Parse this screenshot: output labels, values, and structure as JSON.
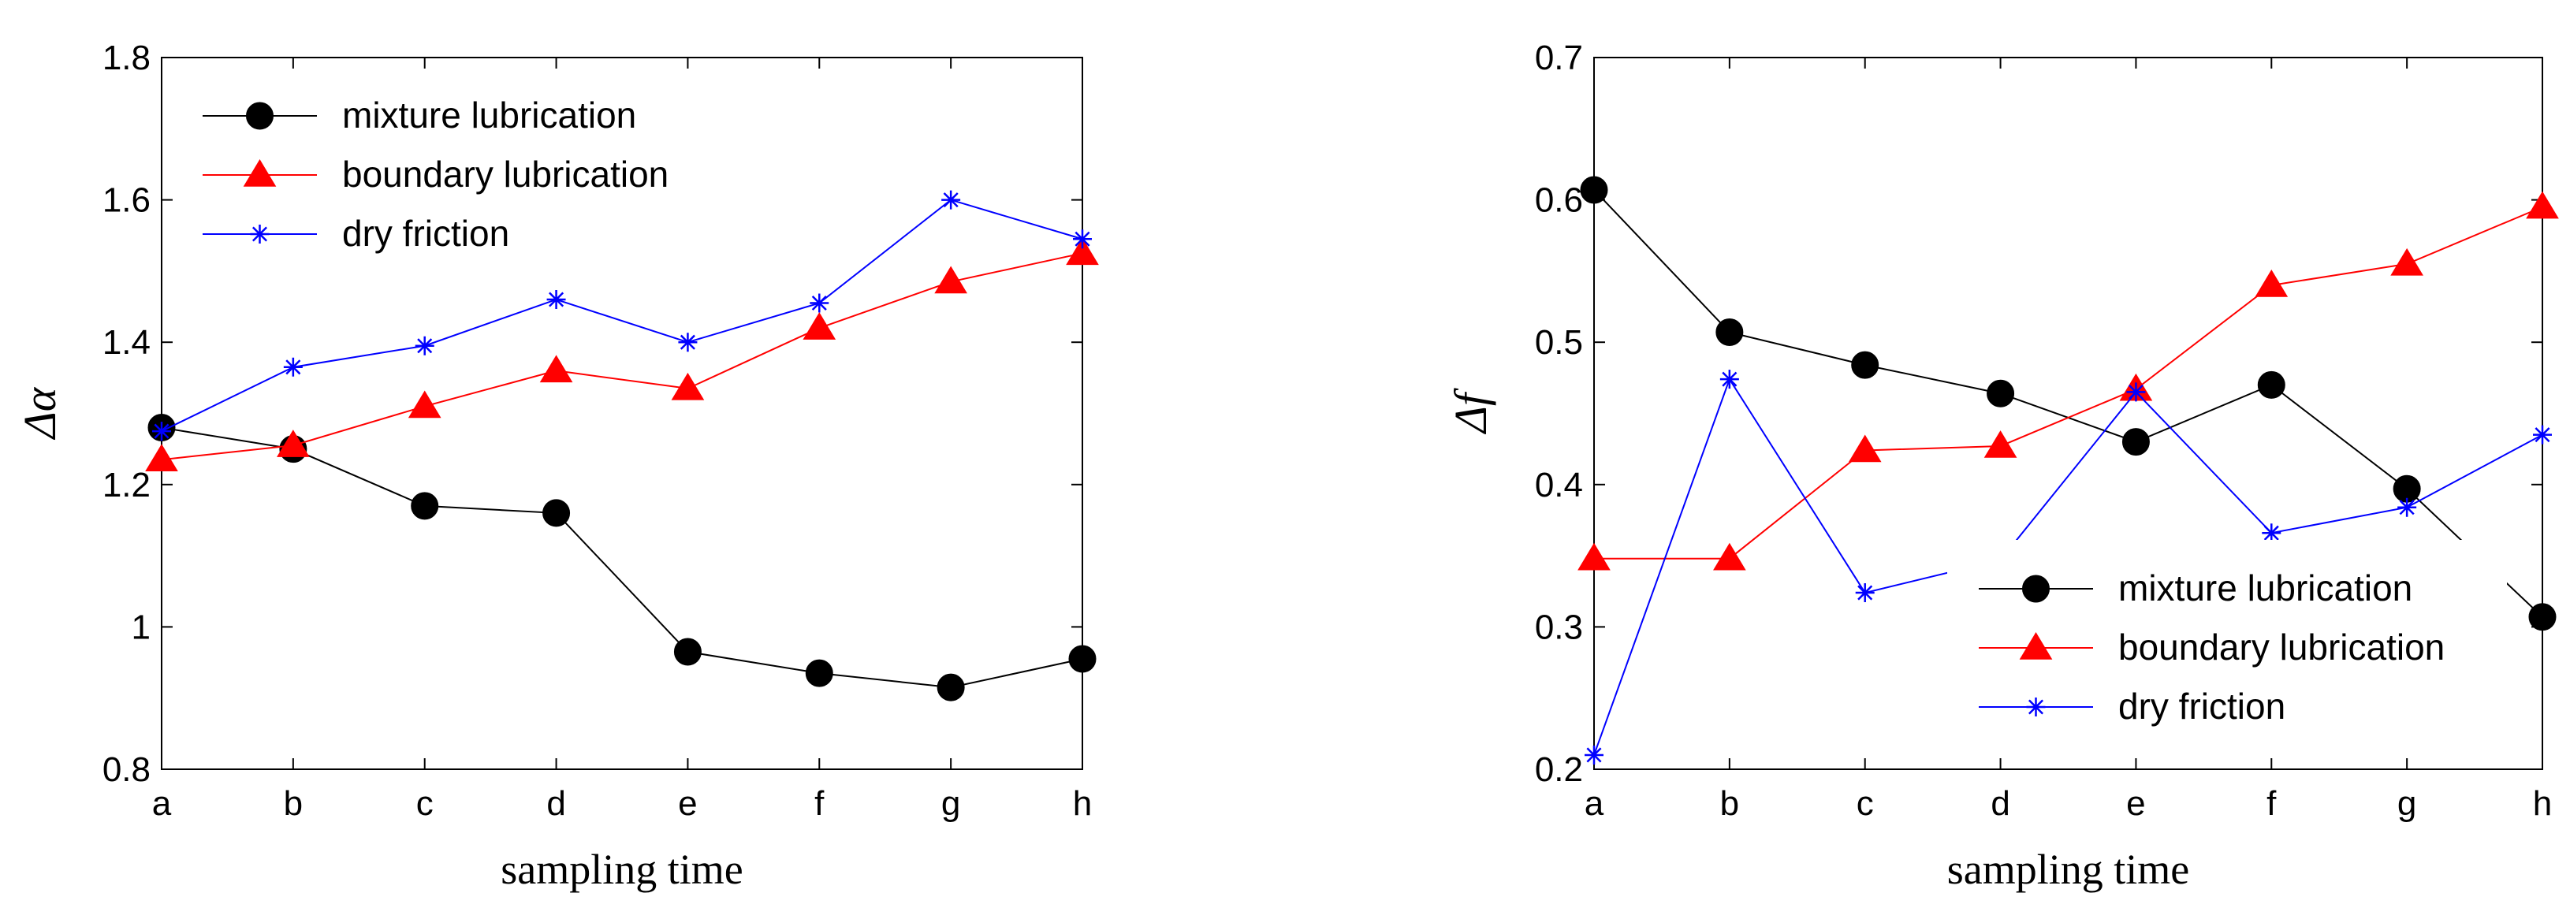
{
  "chart_data": [
    {
      "type": "line",
      "categories": [
        "a",
        "b",
        "c",
        "d",
        "e",
        "f",
        "g",
        "h"
      ],
      "xlabel": "sampling time",
      "ylabel": "Δα",
      "ylim": [
        0.8,
        1.8
      ],
      "yticks": [
        0.8,
        1,
        1.2,
        1.4,
        1.6,
        1.8
      ],
      "ytick_labels": [
        "0.8",
        "1",
        "1.2",
        "1.4",
        "1.6",
        "1.8"
      ],
      "grid": false,
      "legend_position": "top-left",
      "series": [
        {
          "name": "mixture lubrication",
          "color": "#000000",
          "marker": "circle",
          "values": [
            1.28,
            1.25,
            1.17,
            1.16,
            0.965,
            0.935,
            0.915,
            0.955
          ]
        },
        {
          "name": "boundary lubrication",
          "color": "#ff0000",
          "marker": "triangle",
          "values": [
            1.235,
            1.255,
            1.31,
            1.36,
            1.335,
            1.42,
            1.485,
            1.525
          ]
        },
        {
          "name": "dry friction",
          "color": "#0000ff",
          "marker": "star",
          "values": [
            1.275,
            1.365,
            1.395,
            1.46,
            1.4,
            1.455,
            1.6,
            1.545
          ]
        }
      ]
    },
    {
      "type": "line",
      "categories": [
        "a",
        "b",
        "c",
        "d",
        "e",
        "f",
        "g",
        "h"
      ],
      "xlabel": "sampling time",
      "ylabel": "Δf",
      "ylim": [
        0.2,
        0.7
      ],
      "yticks": [
        0.2,
        0.3,
        0.4,
        0.5,
        0.6,
        0.7
      ],
      "ytick_labels": [
        "0.2",
        "0.3",
        "0.4",
        "0.5",
        "0.6",
        "0.7"
      ],
      "grid": false,
      "legend_position": "bottom-right",
      "series": [
        {
          "name": "mixture lubrication",
          "color": "#000000",
          "marker": "circle",
          "values": [
            0.607,
            0.507,
            0.484,
            0.464,
            0.43,
            0.47,
            0.397,
            0.307
          ]
        },
        {
          "name": "boundary lubrication",
          "color": "#ff0000",
          "marker": "triangle",
          "values": [
            0.348,
            0.348,
            0.424,
            0.427,
            0.467,
            0.54,
            0.555,
            0.595
          ]
        },
        {
          "name": "dry friction",
          "color": "#0000ff",
          "marker": "star",
          "values": [
            0.21,
            0.474,
            0.324,
            0.347,
            0.465,
            0.366,
            0.384,
            0.435
          ]
        }
      ]
    }
  ]
}
